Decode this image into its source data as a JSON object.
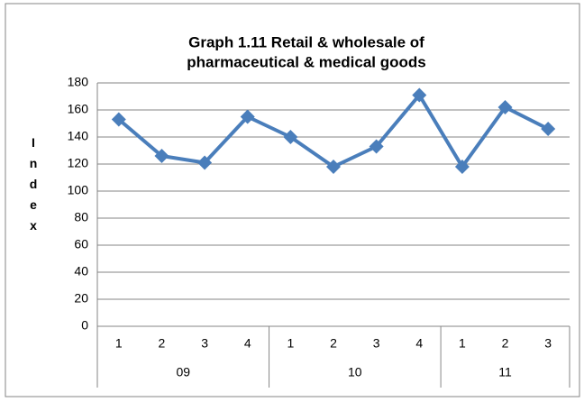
{
  "chart_data": {
    "type": "line",
    "title": [
      "Graph 1.11 Retail & wholesale of",
      "pharmaceutical & medical goods"
    ],
    "y_label": "Index",
    "groups": [
      {
        "name": "09",
        "categories": [
          "1",
          "2",
          "3",
          "4"
        ]
      },
      {
        "name": "10",
        "categories": [
          "1",
          "2",
          "3",
          "4"
        ]
      },
      {
        "name": "11",
        "categories": [
          "1",
          "2",
          "3"
        ]
      }
    ],
    "values": [
      153,
      126,
      121,
      155,
      140,
      118,
      133,
      171,
      118,
      162,
      146
    ],
    "color": "#4a7ebb",
    "ylim": [
      0,
      180
    ],
    "yticks": [
      0,
      20,
      40,
      60,
      80,
      100,
      120,
      140,
      160,
      180
    ],
    "grid": true
  }
}
